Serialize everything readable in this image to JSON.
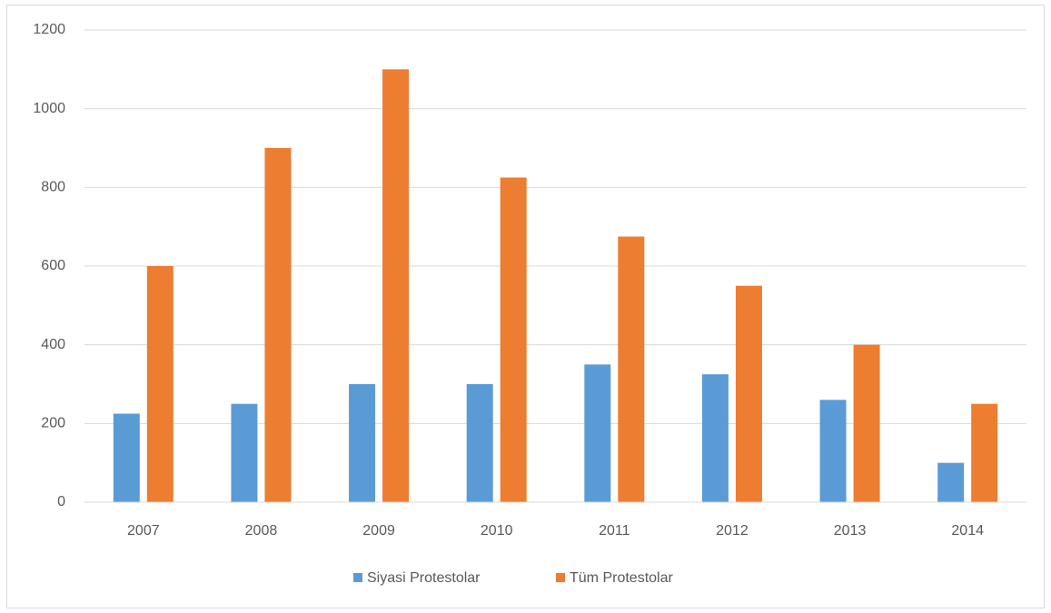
{
  "chart_data": {
    "type": "bar",
    "categories": [
      "2007",
      "2008",
      "2009",
      "2010",
      "2011",
      "2012",
      "2013",
      "2014"
    ],
    "series": [
      {
        "name": "Siyasi Protestolar",
        "color": "#5b9bd5",
        "values": [
          225,
          250,
          300,
          300,
          350,
          325,
          260,
          100
        ]
      },
      {
        "name": "Tüm Protestolar",
        "color": "#ed7d31",
        "values": [
          600,
          900,
          1100,
          825,
          675,
          550,
          400,
          250
        ]
      }
    ],
    "ylim": [
      0,
      1200
    ],
    "yticks": [
      0,
      200,
      400,
      600,
      800,
      1000,
      1200
    ],
    "grid": true,
    "legend": "bottom"
  }
}
